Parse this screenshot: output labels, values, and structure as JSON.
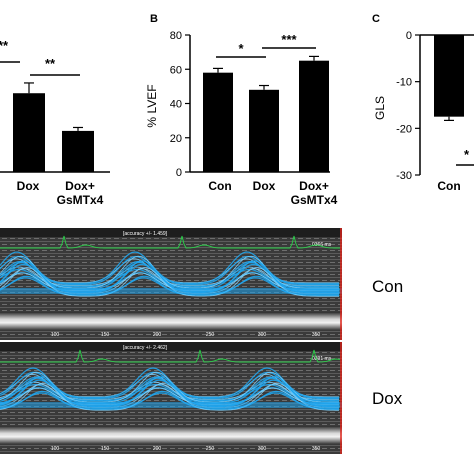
{
  "panels": {
    "a": {
      "partial": true,
      "sig_top_left": "**",
      "sig_right": "**",
      "categories": [
        "Dox",
        "Dox+\nGsMTx4"
      ],
      "values": [
        46,
        24
      ],
      "errors": [
        6,
        2
      ],
      "ylim": [
        0,
        80
      ]
    },
    "b": {
      "letter": "B",
      "ylabel": "% LVEF",
      "yticks": [
        "0",
        "20",
        "40",
        "60",
        "80"
      ],
      "ylim": [
        0,
        80
      ],
      "categories": [
        "Con",
        "Dox",
        "Dox+\nGsMTx4"
      ],
      "values": [
        58,
        48,
        65
      ],
      "errors": [
        2.5,
        2.5,
        2.5
      ],
      "sig": [
        {
          "label": "*",
          "from": 0,
          "to": 1
        },
        {
          "label": "***",
          "from": 1,
          "to": 2
        }
      ]
    },
    "c": {
      "letter": "C",
      "ylabel": "GLS",
      "yticks": [
        "0",
        "-10",
        "-20",
        "-30"
      ],
      "ylim": [
        -30,
        0
      ],
      "categories": [
        "Con"
      ],
      "values": [
        -17.5
      ],
      "errors": [
        0.8
      ],
      "sig_partial": "*"
    }
  },
  "echo": [
    {
      "label": "Con",
      "header": "[accuracy +/- 1.459]",
      "ms": "0366 ms",
      "xticks": [
        "100",
        "150",
        "200",
        "250",
        "300",
        "350"
      ]
    },
    {
      "label": "Dox",
      "header": "[accuracy +/- 2.462]",
      "ms": "0391 ms",
      "xticks": [
        "100",
        "150",
        "200",
        "250",
        "300",
        "350"
      ]
    }
  ],
  "colors": {
    "bar": "#000000",
    "trace": "#1fa6f0",
    "trace_light": "#7fd4ff",
    "ecg": "#2bd14a",
    "edge": "#e0241b"
  }
}
